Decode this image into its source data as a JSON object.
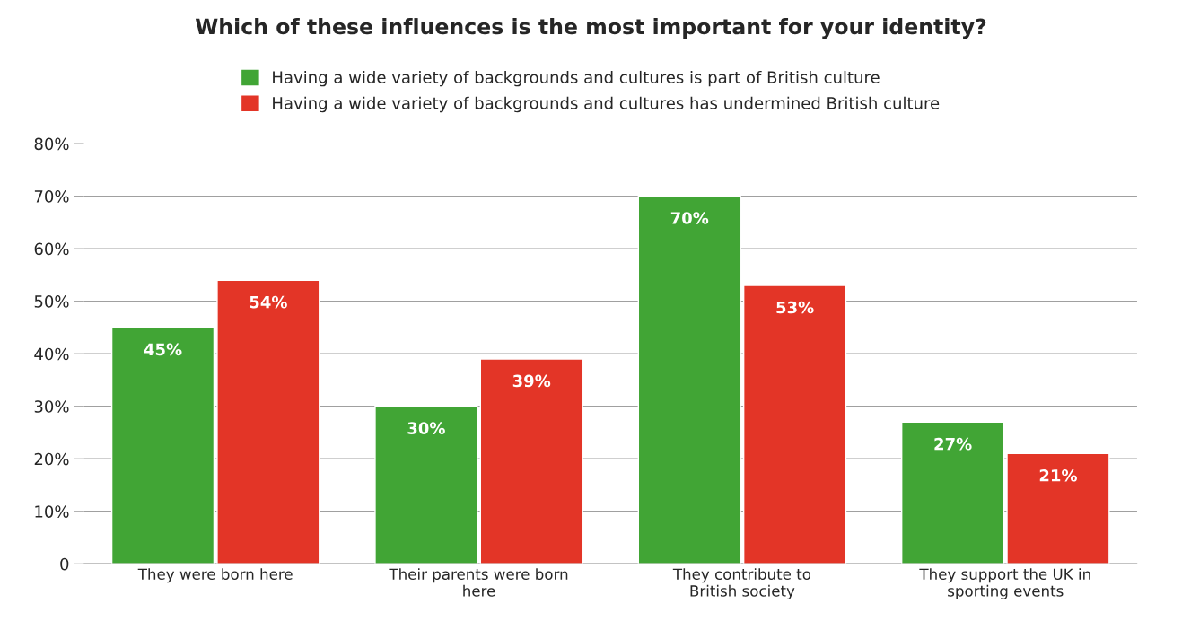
{
  "chart_data": {
    "type": "bar",
    "title": "Which of these influences is the most important for your identity?",
    "categories": [
      "They were born here",
      "Their parents were born here",
      "They contribute to British society",
      "They support the UK in sporting events"
    ],
    "series": [
      {
        "name": "Having a wide variety of backgrounds and cultures is part of British culture",
        "color": "#41a535",
        "values": [
          45,
          30,
          70,
          27
        ],
        "value_labels": [
          "45%",
          "30%",
          "70%",
          "27%"
        ]
      },
      {
        "name": "Having a wide variety of backgrounds and cultures has undermined British culture",
        "color": "#e33527",
        "values": [
          54,
          39,
          53,
          21
        ],
        "value_labels": [
          "54%",
          "39%",
          "53%",
          "21%"
        ]
      }
    ],
    "ylim": [
      0,
      80
    ],
    "yticks": [
      0,
      {
        "value": 10,
        "label": "10%"
      },
      {
        "value": 20,
        "label": "20%"
      },
      {
        "value": 30,
        "label": "30%"
      },
      {
        "value": 40,
        "label": "40%"
      },
      {
        "value": 50,
        "label": "50%"
      },
      {
        "value": 60,
        "label": "60%"
      },
      {
        "value": 70,
        "label": "70%"
      },
      {
        "value": 80,
        "label": "80%"
      }
    ],
    "grid": "y",
    "legend": "top"
  }
}
